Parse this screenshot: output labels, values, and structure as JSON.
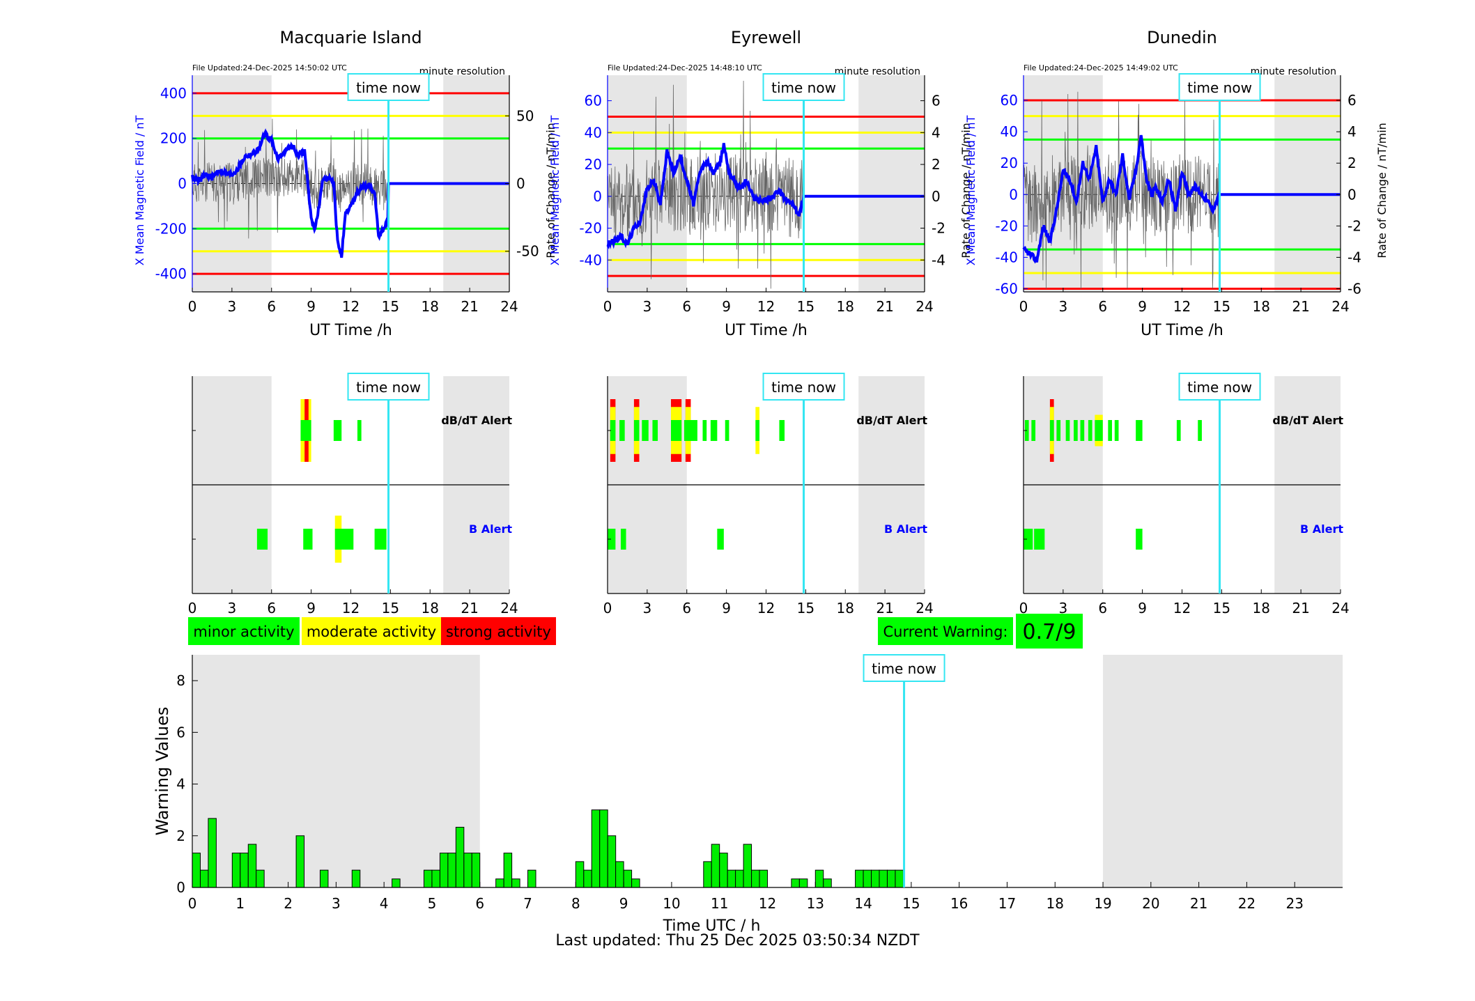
{
  "colors": {
    "shade": "#e6e6e6",
    "red": "#ff0000",
    "yellow": "#ffff00",
    "green": "#00ff00",
    "blue": "#0000ff",
    "cyan": "#33e6f2",
    "bar_green": "#00ee00"
  },
  "time_now_label": "time now",
  "field_panels": [
    {
      "title": "Macquarie Island",
      "file_updated": "File Updated:24-Dec-2025 14:50:02 UTC",
      "resolution": "minute resolution",
      "left_label": "X Mean Magnetic Field / nT",
      "right_label": "Rate of Change / nT/min",
      "xlabel": "UT Time /h",
      "ylim": [
        -480,
        480
      ],
      "yticks": [
        -400,
        -200,
        0,
        200,
        400
      ],
      "ytick_labels": [
        "-400",
        "-200",
        "0",
        "200",
        "400"
      ],
      "rticks": [
        -300,
        0,
        300
      ],
      "rtick_labels": [
        "-50",
        "0",
        "50"
      ],
      "thresholds": {
        "red": 400,
        "yellow": 300,
        "green": 200
      },
      "time_now": 14.85,
      "night_end": 6,
      "night_start": 19,
      "noise_amp": 90,
      "noise_seed": 11,
      "field_points": [
        [
          0,
          30
        ],
        [
          0.5,
          10
        ],
        [
          1,
          40
        ],
        [
          1.5,
          25
        ],
        [
          2,
          60
        ],
        [
          2.5,
          45
        ],
        [
          3,
          40
        ],
        [
          3.5,
          70
        ],
        [
          4,
          120
        ],
        [
          4.5,
          130
        ],
        [
          5,
          150
        ],
        [
          5.5,
          220
        ],
        [
          6,
          190
        ],
        [
          6.5,
          110
        ],
        [
          7,
          140
        ],
        [
          7.5,
          170
        ],
        [
          8,
          130
        ],
        [
          8.5,
          140
        ],
        [
          8.7,
          30
        ],
        [
          9,
          -160
        ],
        [
          9.3,
          -200
        ],
        [
          9.6,
          -100
        ],
        [
          9.9,
          20
        ],
        [
          10.3,
          30
        ],
        [
          10.7,
          0
        ],
        [
          11,
          -260
        ],
        [
          11.3,
          -320
        ],
        [
          11.6,
          -140
        ],
        [
          12,
          -100
        ],
        [
          12.5,
          -40
        ],
        [
          13,
          -10
        ],
        [
          13.4,
          -10
        ],
        [
          13.8,
          -50
        ],
        [
          14.1,
          -230
        ],
        [
          14.5,
          -200
        ],
        [
          14.8,
          -160
        ],
        [
          14.85,
          0
        ],
        [
          24,
          0
        ]
      ]
    },
    {
      "title": "Eyrewell",
      "file_updated": "File Updated:24-Dec-2025 14:48:10 UTC",
      "resolution": "minute resolution",
      "left_label": "X Mean Magnetic Field / nT",
      "right_label": "Rate of Change / nT/min",
      "xlabel": "UT Time /h",
      "ylim": [
        -60,
        76
      ],
      "yticks": [
        -40,
        -20,
        0,
        20,
        40,
        60
      ],
      "ytick_labels": [
        "-40",
        "-20",
        "0",
        "20",
        "40",
        "60"
      ],
      "rticks": [
        -40,
        -20,
        0,
        20,
        40,
        60
      ],
      "rtick_labels": [
        "-4",
        "-2",
        "0",
        "2",
        "4",
        "6"
      ],
      "thresholds": {
        "red": 50,
        "yellow": 40,
        "green": 30
      },
      "time_now": 14.85,
      "night_end": 6,
      "night_start": 19,
      "noise_amp": 25,
      "noise_seed": 23,
      "field_points": [
        [
          0,
          -30
        ],
        [
          0.5,
          -28
        ],
        [
          1,
          -25
        ],
        [
          1.5,
          -30
        ],
        [
          2,
          -20
        ],
        [
          2.5,
          -15
        ],
        [
          3,
          5
        ],
        [
          3.5,
          10
        ],
        [
          4,
          -5
        ],
        [
          4.5,
          28
        ],
        [
          5,
          15
        ],
        [
          5.5,
          25
        ],
        [
          6,
          10
        ],
        [
          6.5,
          -5
        ],
        [
          7,
          15
        ],
        [
          7.5,
          22
        ],
        [
          8,
          15
        ],
        [
          8.5,
          20
        ],
        [
          8.8,
          33
        ],
        [
          9.2,
          15
        ],
        [
          9.6,
          10
        ],
        [
          10,
          5
        ],
        [
          10.5,
          10
        ],
        [
          11,
          0
        ],
        [
          11.5,
          -3
        ],
        [
          12,
          -2
        ],
        [
          12.5,
          0
        ],
        [
          13,
          3
        ],
        [
          13.5,
          -2
        ],
        [
          14,
          -5
        ],
        [
          14.5,
          -12
        ],
        [
          14.85,
          0
        ],
        [
          24,
          0
        ]
      ]
    },
    {
      "title": "Dunedin",
      "file_updated": "File Updated:24-Dec-2025 14:49:02 UTC",
      "resolution": "minute resolution",
      "left_label": "X Mean Magnetic Field / nT",
      "right_label": "Rate of Change / nT/min",
      "xlabel": "UT Time /h",
      "ylim": [
        -62,
        76
      ],
      "yticks": [
        -60,
        -40,
        -20,
        0,
        20,
        40,
        60
      ],
      "ytick_labels": [
        "-60",
        "-40",
        "-20",
        "0",
        "20",
        "40",
        "60"
      ],
      "rticks": [
        -60,
        -40,
        -20,
        0,
        20,
        40,
        60
      ],
      "rtick_labels": [
        "-6",
        "-4",
        "-2",
        "0",
        "2",
        "4",
        "6"
      ],
      "thresholds": {
        "red": 60,
        "yellow": 50,
        "green": 35
      },
      "time_now": 14.85,
      "night_end": 6,
      "night_start": 19,
      "noise_amp": 25,
      "noise_seed": 37,
      "field_points": [
        [
          0,
          -35
        ],
        [
          0.5,
          -38
        ],
        [
          1,
          -42
        ],
        [
          1.5,
          -20
        ],
        [
          2,
          -30
        ],
        [
          2.5,
          -10
        ],
        [
          3,
          15
        ],
        [
          3.5,
          10
        ],
        [
          4,
          -5
        ],
        [
          4.5,
          20
        ],
        [
          5,
          10
        ],
        [
          5.5,
          30
        ],
        [
          6,
          -5
        ],
        [
          6.5,
          10
        ],
        [
          7,
          0
        ],
        [
          7.5,
          25
        ],
        [
          8,
          -3
        ],
        [
          8.5,
          15
        ],
        [
          8.9,
          38
        ],
        [
          9.3,
          10
        ],
        [
          9.7,
          0
        ],
        [
          10,
          5
        ],
        [
          10.5,
          -5
        ],
        [
          11,
          10
        ],
        [
          11.5,
          -10
        ],
        [
          12,
          15
        ],
        [
          12.5,
          0
        ],
        [
          13,
          5
        ],
        [
          13.5,
          0
        ],
        [
          14,
          -5
        ],
        [
          14.3,
          -10
        ],
        [
          14.85,
          0
        ],
        [
          24,
          0
        ]
      ]
    }
  ],
  "alert_panels": [
    {
      "dbdt_label": "dB/dT Alert",
      "b_label": "B Alert",
      "dbdt_segments": [
        [
          8.2,
          9.0,
          "yellow",
          0.6
        ],
        [
          8.5,
          8.8,
          "red",
          0.6
        ],
        [
          8.2,
          9.0,
          "green",
          0.2
        ],
        [
          10.7,
          11.3,
          "green",
          0.2
        ],
        [
          12.5,
          12.8,
          "green",
          0.2
        ]
      ],
      "b_segments": [
        [
          4.9,
          5.7,
          "green",
          0.2
        ],
        [
          8.4,
          9.1,
          "green",
          0.2
        ],
        [
          10.8,
          11.3,
          "yellow",
          0.45
        ],
        [
          10.8,
          12.2,
          "green",
          0.2
        ],
        [
          13.8,
          14.7,
          "green",
          0.2
        ]
      ]
    },
    {
      "dbdt_label": "dB/dT Alert",
      "b_label": "B Alert",
      "dbdt_segments": [
        [
          0.2,
          0.6,
          "red",
          0.6
        ],
        [
          0.2,
          0.6,
          "yellow",
          0.45
        ],
        [
          0.2,
          0.6,
          "green",
          0.2
        ],
        [
          0.9,
          1.3,
          "green",
          0.2
        ],
        [
          2.0,
          2.4,
          "red",
          0.6
        ],
        [
          2.0,
          2.4,
          "yellow",
          0.45
        ],
        [
          2.0,
          2.4,
          "green",
          0.2
        ],
        [
          2.6,
          3.1,
          "green",
          0.2
        ],
        [
          3.4,
          3.8,
          "green",
          0.2
        ],
        [
          4.8,
          5.6,
          "red",
          0.6
        ],
        [
          4.8,
          5.6,
          "yellow",
          0.45
        ],
        [
          4.8,
          5.6,
          "green",
          0.2
        ],
        [
          5.9,
          6.3,
          "red",
          0.6
        ],
        [
          5.9,
          6.3,
          "yellow",
          0.45
        ],
        [
          5.8,
          6.8,
          "green",
          0.2
        ],
        [
          7.2,
          7.5,
          "green",
          0.2
        ],
        [
          7.8,
          8.3,
          "green",
          0.2
        ],
        [
          8.9,
          9.2,
          "green",
          0.2
        ],
        [
          11.2,
          11.5,
          "yellow",
          0.45
        ],
        [
          11.2,
          11.5,
          "green",
          0.2
        ],
        [
          13.0,
          13.4,
          "green",
          0.2
        ]
      ],
      "b_segments": [
        [
          0.0,
          0.6,
          "green",
          0.2
        ],
        [
          1.0,
          1.4,
          "green",
          0.2
        ],
        [
          8.3,
          8.8,
          "green",
          0.2
        ]
      ]
    },
    {
      "dbdt_label": "dB/dT Alert",
      "b_label": "B Alert",
      "dbdt_segments": [
        [
          0.1,
          0.4,
          "green",
          0.2
        ],
        [
          0.6,
          0.9,
          "green",
          0.2
        ],
        [
          2.0,
          2.3,
          "red",
          0.6
        ],
        [
          2.0,
          2.3,
          "yellow",
          0.45
        ],
        [
          2.0,
          2.3,
          "green",
          0.2
        ],
        [
          2.5,
          2.8,
          "green",
          0.2
        ],
        [
          3.2,
          3.5,
          "green",
          0.2
        ],
        [
          3.8,
          4.1,
          "green",
          0.2
        ],
        [
          4.3,
          4.6,
          "green",
          0.2
        ],
        [
          4.9,
          5.2,
          "green",
          0.2
        ],
        [
          5.4,
          6.0,
          "yellow",
          0.3
        ],
        [
          5.4,
          6.0,
          "green",
          0.2
        ],
        [
          6.4,
          6.7,
          "green",
          0.2
        ],
        [
          6.9,
          7.2,
          "green",
          0.2
        ],
        [
          8.5,
          9.0,
          "green",
          0.2
        ],
        [
          11.6,
          11.9,
          "green",
          0.2
        ],
        [
          13.2,
          13.5,
          "green",
          0.2
        ]
      ],
      "b_segments": [
        [
          0.0,
          0.7,
          "green",
          0.2
        ],
        [
          0.8,
          1.6,
          "green",
          0.2
        ],
        [
          8.5,
          9.0,
          "green",
          0.2
        ]
      ]
    }
  ],
  "legend": {
    "minor": "minor activity",
    "moderate": "moderate activity",
    "strong": "strong activity"
  },
  "current_warning": {
    "label": "Current Warning:",
    "value": "0.7/9"
  },
  "warning_chart": {
    "type": "bar",
    "ylabel": "Warning Values",
    "xlabel": "Time UTC / h",
    "ylim": [
      0,
      9
    ],
    "yticks": [
      0,
      2,
      4,
      6,
      8
    ],
    "xlim": [
      0,
      24
    ],
    "xticks": [
      0,
      1,
      2,
      3,
      4,
      5,
      6,
      7,
      8,
      9,
      10,
      11,
      12,
      13,
      14,
      15,
      16,
      17,
      18,
      19,
      20,
      21,
      22,
      23
    ],
    "bin_width": 0.1667,
    "time_now": 14.85,
    "night_end": 6,
    "night_start": 19,
    "bars": [
      [
        0.0,
        1.33
      ],
      [
        0.167,
        0.67
      ],
      [
        0.333,
        2.67
      ],
      [
        0.833,
        1.33
      ],
      [
        1.0,
        1.33
      ],
      [
        1.167,
        1.67
      ],
      [
        1.333,
        0.67
      ],
      [
        2.167,
        2.0
      ],
      [
        2.667,
        0.67
      ],
      [
        3.333,
        0.67
      ],
      [
        4.167,
        0.33
      ],
      [
        4.833,
        0.67
      ],
      [
        5.0,
        0.67
      ],
      [
        5.167,
        1.33
      ],
      [
        5.333,
        1.33
      ],
      [
        5.5,
        2.33
      ],
      [
        5.667,
        1.33
      ],
      [
        5.833,
        1.33
      ],
      [
        6.333,
        0.33
      ],
      [
        6.5,
        1.33
      ],
      [
        6.667,
        0.33
      ],
      [
        7.0,
        0.67
      ],
      [
        8.0,
        1.0
      ],
      [
        8.167,
        0.67
      ],
      [
        8.333,
        3.0
      ],
      [
        8.5,
        3.0
      ],
      [
        8.667,
        2.0
      ],
      [
        8.833,
        1.0
      ],
      [
        9.0,
        0.67
      ],
      [
        9.167,
        0.33
      ],
      [
        10.667,
        1.0
      ],
      [
        10.833,
        1.67
      ],
      [
        11.0,
        1.33
      ],
      [
        11.167,
        0.67
      ],
      [
        11.333,
        0.67
      ],
      [
        11.5,
        1.67
      ],
      [
        11.667,
        0.67
      ],
      [
        11.833,
        0.67
      ],
      [
        12.5,
        0.33
      ],
      [
        12.667,
        0.33
      ],
      [
        13.0,
        0.67
      ],
      [
        13.167,
        0.33
      ],
      [
        13.833,
        0.67
      ],
      [
        14.0,
        0.67
      ],
      [
        14.167,
        0.67
      ],
      [
        14.333,
        0.67
      ],
      [
        14.5,
        0.67
      ],
      [
        14.667,
        0.67
      ]
    ]
  },
  "footer": {
    "last_updated": "Last updated: Thu 25 Dec 2025 03:50:34 NZDT"
  }
}
